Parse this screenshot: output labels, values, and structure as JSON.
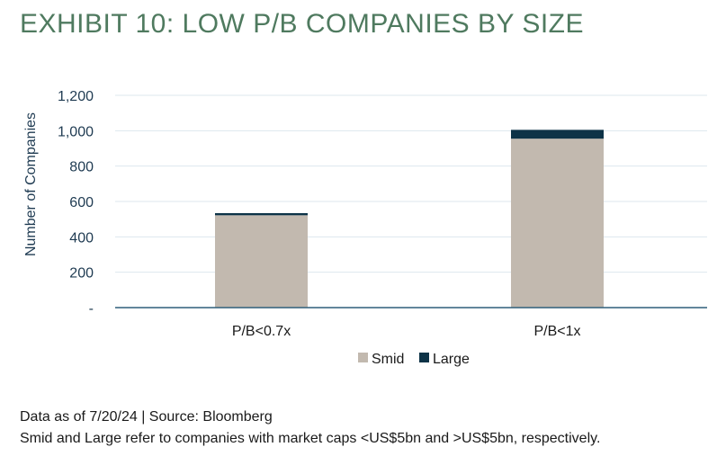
{
  "title": "EXHIBIT 10: LOW P/B COMPANIES BY SIZE",
  "footnotes": {
    "source": "Data as of 7/20/24 | Source: Bloomberg",
    "definition": "Smid and Large refer to companies with market caps <US$5bn and >US$5bn, respectively."
  },
  "colors": {
    "title": "#4f7a5f",
    "axis_text": "#1f3b52",
    "grid": "#dde7ee",
    "baseline": "#2f5f7a"
  },
  "chart_data": {
    "type": "bar",
    "stacked": true,
    "categories": [
      "P/B<0.7x",
      "P/B<1x"
    ],
    "series": [
      {
        "name": "Smid",
        "values": [
          522,
          955
        ],
        "color": "#c2b9af"
      },
      {
        "name": "Large",
        "values": [
          12,
          50
        ],
        "color": "#0d3347"
      }
    ],
    "ylabel": "Number of Companies",
    "ylim": [
      0,
      1200
    ],
    "yticks": [
      0,
      200,
      400,
      600,
      800,
      1000,
      1200
    ],
    "ytick_labels": [
      "-",
      "200",
      "400",
      "600",
      "800",
      "1,000",
      "1,200"
    ],
    "grid": true,
    "legend_position": "bottom-center"
  }
}
